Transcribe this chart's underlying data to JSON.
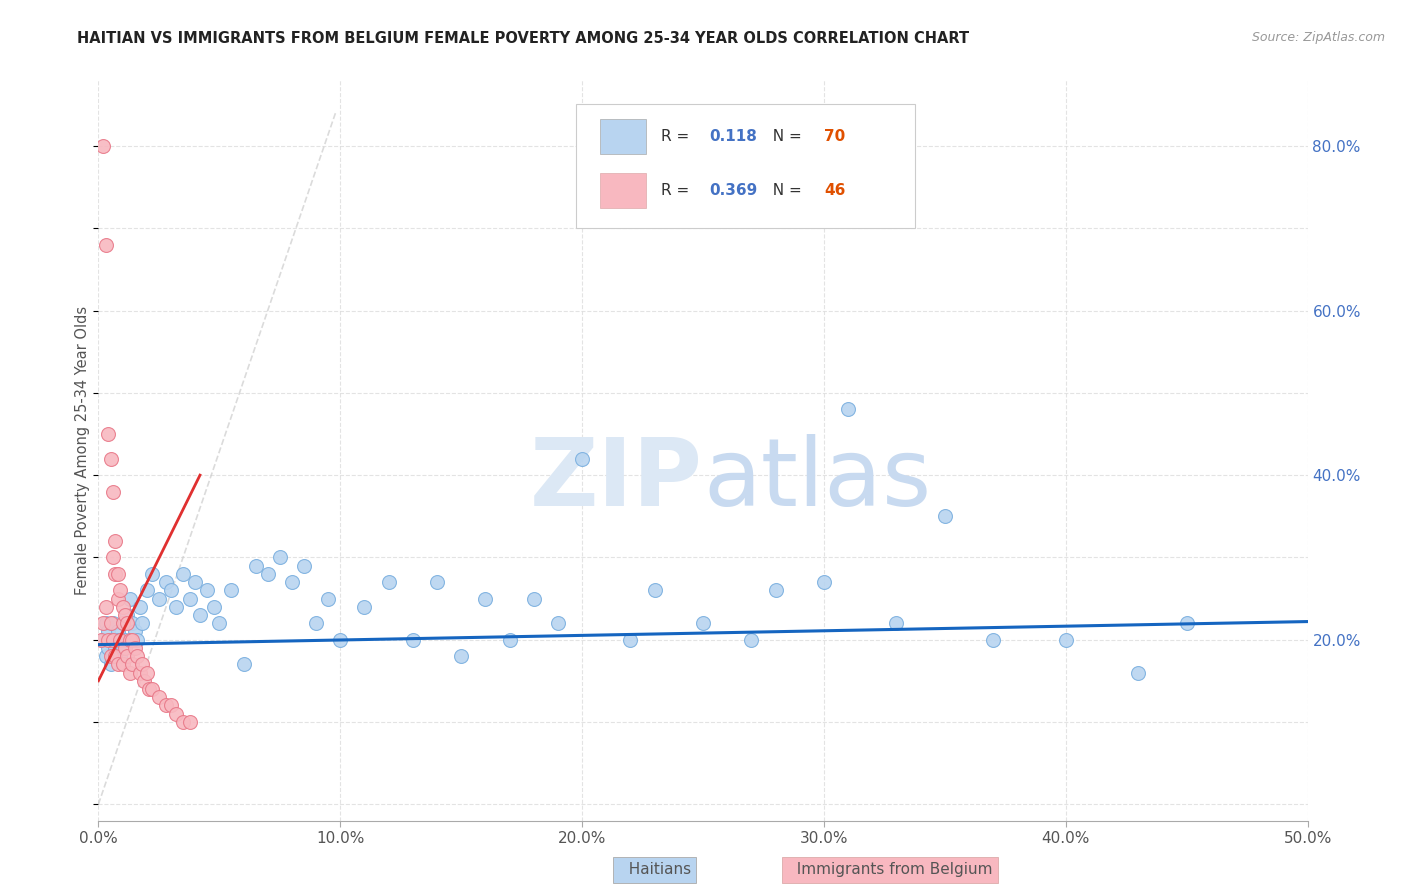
{
  "title": "HAITIAN VS IMMIGRANTS FROM BELGIUM FEMALE POVERTY AMONG 25-34 YEAR OLDS CORRELATION CHART",
  "source": "Source: ZipAtlas.com",
  "ylabel": "Female Poverty Among 25-34 Year Olds",
  "xlim": [
    0.0,
    0.5
  ],
  "ylim": [
    -0.02,
    0.88
  ],
  "xticks": [
    0.0,
    0.1,
    0.2,
    0.3,
    0.4,
    0.5
  ],
  "xtick_labels": [
    "0.0%",
    "10.0%",
    "20.0%",
    "30.0%",
    "40.0%",
    "50.0%"
  ],
  "yticks_right": [
    0.2,
    0.4,
    0.6,
    0.8
  ],
  "ytick_labels_right": [
    "20.0%",
    "40.0%",
    "60.0%",
    "80.0%"
  ],
  "blue_fill": "#b8d4f0",
  "blue_edge": "#7aafdf",
  "pink_fill": "#f8b8c0",
  "pink_edge": "#e87888",
  "trend_blue": "#1565c0",
  "trend_pink": "#e03030",
  "diag_color": "#cccccc",
  "watermark": "ZIPatlas",
  "haitians_x": [
    0.002,
    0.003,
    0.003,
    0.004,
    0.004,
    0.005,
    0.005,
    0.006,
    0.006,
    0.007,
    0.007,
    0.008,
    0.008,
    0.009,
    0.01,
    0.01,
    0.011,
    0.012,
    0.013,
    0.014,
    0.015,
    0.016,
    0.017,
    0.018,
    0.02,
    0.022,
    0.025,
    0.028,
    0.03,
    0.032,
    0.035,
    0.038,
    0.04,
    0.042,
    0.045,
    0.048,
    0.05,
    0.055,
    0.06,
    0.065,
    0.07,
    0.075,
    0.08,
    0.085,
    0.09,
    0.095,
    0.1,
    0.11,
    0.12,
    0.13,
    0.14,
    0.15,
    0.16,
    0.17,
    0.18,
    0.19,
    0.2,
    0.22,
    0.23,
    0.25,
    0.27,
    0.28,
    0.3,
    0.31,
    0.33,
    0.35,
    0.37,
    0.4,
    0.43,
    0.45
  ],
  "haitians_y": [
    0.2,
    0.18,
    0.22,
    0.19,
    0.21,
    0.17,
    0.2,
    0.18,
    0.22,
    0.2,
    0.19,
    0.21,
    0.2,
    0.18,
    0.22,
    0.19,
    0.2,
    0.23,
    0.25,
    0.22,
    0.21,
    0.2,
    0.24,
    0.22,
    0.26,
    0.28,
    0.25,
    0.27,
    0.26,
    0.24,
    0.28,
    0.25,
    0.27,
    0.23,
    0.26,
    0.24,
    0.22,
    0.26,
    0.17,
    0.29,
    0.28,
    0.3,
    0.27,
    0.29,
    0.22,
    0.25,
    0.2,
    0.24,
    0.27,
    0.2,
    0.27,
    0.18,
    0.25,
    0.2,
    0.25,
    0.22,
    0.42,
    0.2,
    0.26,
    0.22,
    0.2,
    0.26,
    0.27,
    0.48,
    0.22,
    0.35,
    0.2,
    0.2,
    0.16,
    0.22
  ],
  "belgium_x": [
    0.001,
    0.002,
    0.002,
    0.003,
    0.003,
    0.004,
    0.004,
    0.005,
    0.005,
    0.005,
    0.006,
    0.006,
    0.006,
    0.007,
    0.007,
    0.007,
    0.008,
    0.008,
    0.008,
    0.009,
    0.009,
    0.01,
    0.01,
    0.01,
    0.011,
    0.011,
    0.012,
    0.012,
    0.013,
    0.013,
    0.014,
    0.014,
    0.015,
    0.016,
    0.017,
    0.018,
    0.019,
    0.02,
    0.021,
    0.022,
    0.025,
    0.028,
    0.03,
    0.032,
    0.035,
    0.038
  ],
  "belgium_y": [
    0.2,
    0.8,
    0.22,
    0.68,
    0.24,
    0.45,
    0.2,
    0.42,
    0.22,
    0.18,
    0.38,
    0.3,
    0.2,
    0.32,
    0.28,
    0.18,
    0.28,
    0.25,
    0.17,
    0.26,
    0.2,
    0.24,
    0.22,
    0.17,
    0.23,
    0.19,
    0.22,
    0.18,
    0.2,
    0.16,
    0.2,
    0.17,
    0.19,
    0.18,
    0.16,
    0.17,
    0.15,
    0.16,
    0.14,
    0.14,
    0.13,
    0.12,
    0.12,
    0.11,
    0.1,
    0.1
  ]
}
